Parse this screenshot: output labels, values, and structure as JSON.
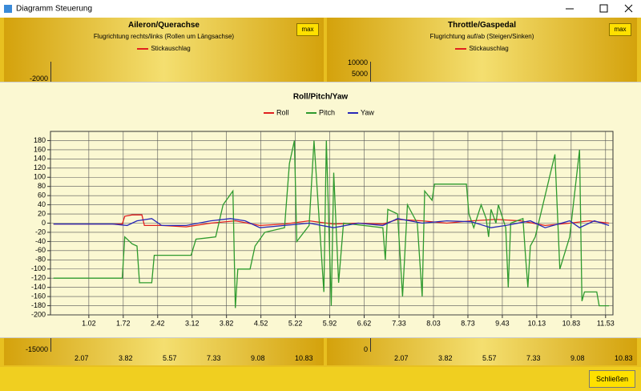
{
  "window": {
    "title": "Diagramm Steuerung",
    "close_button": "Schließen"
  },
  "panels": [
    {
      "title": "Aileron/Querachse",
      "subtitle": "Flugrichtung rechts/links (Rollen um Längsachse)",
      "legend": "Stickauschlag",
      "button": "max",
      "ytick_labels": [
        "-2000",
        "-15000"
      ],
      "xtick_labels": [
        "2.07",
        "3.82",
        "5.57",
        "7.33",
        "9.08",
        "10.83"
      ]
    },
    {
      "title": "Throttle/Gaspedal",
      "subtitle": "Flugrichtung auf/ab (Steigen/Sinken)",
      "legend": "Stickauschlag",
      "button": "max",
      "ytick_labels": [
        "10000",
        "5000",
        "0"
      ],
      "xtick_labels": [
        "2.07",
        "3.82",
        "5.57",
        "7.33",
        "9.08",
        "10.83"
      ]
    }
  ],
  "chart_data": {
    "type": "line",
    "title": "Roll/Pitch/Yaw",
    "grid": true,
    "legend": "top",
    "xlim": [
      0.24,
      11.68
    ],
    "ylim": [
      -200,
      200
    ],
    "xticks": [
      1.02,
      1.72,
      2.42,
      3.12,
      3.82,
      4.52,
      5.22,
      5.92,
      6.62,
      7.33,
      8.03,
      8.73,
      9.43,
      10.13,
      10.83,
      11.53
    ],
    "yticks": [
      -200,
      -180,
      -160,
      -140,
      -120,
      -100,
      -80,
      -60,
      -40,
      -20,
      0,
      20,
      40,
      60,
      80,
      100,
      120,
      140,
      160,
      180
    ],
    "series": [
      {
        "name": "Roll",
        "color": "#e02020",
        "x": [
          0.3,
          1.0,
          1.7,
          1.75,
          1.9,
          2.1,
          2.15,
          2.5,
          3.0,
          3.5,
          4.0,
          4.5,
          5.0,
          5.5,
          6.0,
          6.5,
          7.0,
          7.3,
          7.8,
          8.3,
          8.8,
          9.3,
          9.8,
          10.3,
          10.8,
          11.2,
          11.6
        ],
        "values": [
          -2,
          -2,
          -2,
          15,
          18,
          18,
          -5,
          -5,
          -8,
          0,
          5,
          -5,
          -2,
          5,
          -2,
          0,
          -2,
          8,
          5,
          0,
          5,
          8,
          5,
          -5,
          0,
          5,
          0
        ]
      },
      {
        "name": "Pitch",
        "color": "#2e9a2e",
        "x": [
          0.3,
          1.7,
          1.75,
          1.9,
          2.0,
          2.05,
          2.3,
          2.35,
          3.1,
          3.2,
          3.6,
          3.75,
          3.95,
          4.0,
          4.05,
          4.3,
          4.4,
          4.6,
          5.0,
          5.1,
          5.2,
          5.25,
          5.5,
          5.6,
          5.8,
          5.85,
          5.95,
          6.0,
          6.1,
          6.2,
          7.0,
          7.05,
          7.1,
          7.3,
          7.4,
          7.5,
          7.7,
          7.8,
          7.85,
          8.0,
          8.05,
          8.7,
          8.75,
          8.85,
          9.0,
          9.1,
          9.15,
          9.2,
          9.3,
          9.35,
          9.5,
          9.55,
          9.6,
          9.85,
          9.9,
          9.95,
          10.0,
          10.1,
          10.5,
          10.6,
          10.8,
          11.0,
          11.05,
          11.1,
          11.35,
          11.4,
          11.6
        ],
        "values": [
          -120,
          -120,
          -30,
          -45,
          -50,
          -130,
          -130,
          -70,
          -70,
          -35,
          -30,
          40,
          70,
          -185,
          -100,
          -100,
          -50,
          -20,
          -10,
          130,
          180,
          -40,
          -5,
          180,
          -150,
          180,
          -180,
          110,
          -130,
          0,
          -10,
          -80,
          30,
          20,
          -160,
          40,
          0,
          -160,
          70,
          50,
          85,
          85,
          20,
          -10,
          40,
          10,
          -30,
          30,
          0,
          40,
          -10,
          -140,
          0,
          10,
          -70,
          -140,
          -50,
          -30,
          150,
          -100,
          -30,
          160,
          -170,
          -150,
          -150,
          -180,
          -180
        ]
      },
      {
        "name": "Yaw",
        "color": "#2828b8",
        "x": [
          0.3,
          1.5,
          1.8,
          2.0,
          2.3,
          2.5,
          3.0,
          3.5,
          3.9,
          4.2,
          4.5,
          5.0,
          5.5,
          6.0,
          6.5,
          7.0,
          7.3,
          7.8,
          8.3,
          8.8,
          9.2,
          9.5,
          10.0,
          10.3,
          10.8,
          11.0,
          11.3,
          11.6
        ],
        "values": [
          -2,
          -2,
          -5,
          5,
          10,
          -5,
          -5,
          5,
          10,
          5,
          -10,
          -5,
          0,
          -10,
          0,
          -5,
          10,
          0,
          5,
          3,
          -10,
          -5,
          5,
          -10,
          5,
          -10,
          5,
          -5
        ]
      }
    ]
  }
}
